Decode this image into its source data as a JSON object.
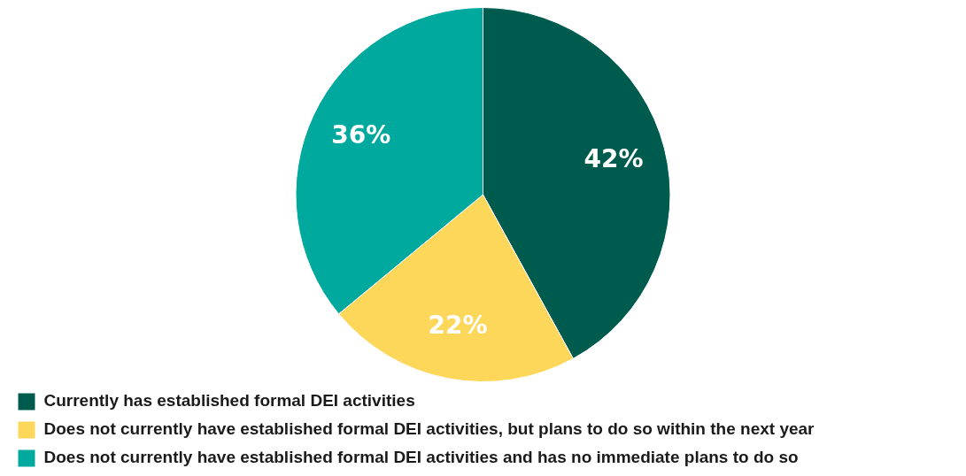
{
  "chart_data": {
    "type": "pie",
    "categories": [
      "Currently has established formal DEI activities",
      "Does not currently have established formal DEI activities, but plans to do so within the next year",
      "Does not currently have established formal DEI activities and has no immediate plans to do so"
    ],
    "values": [
      42,
      22,
      36
    ],
    "colors": [
      "#005b4f",
      "#fdd75a",
      "#00a99e"
    ],
    "value_labels": [
      "42%",
      "22%",
      "36%"
    ],
    "legend": "bottom"
  }
}
